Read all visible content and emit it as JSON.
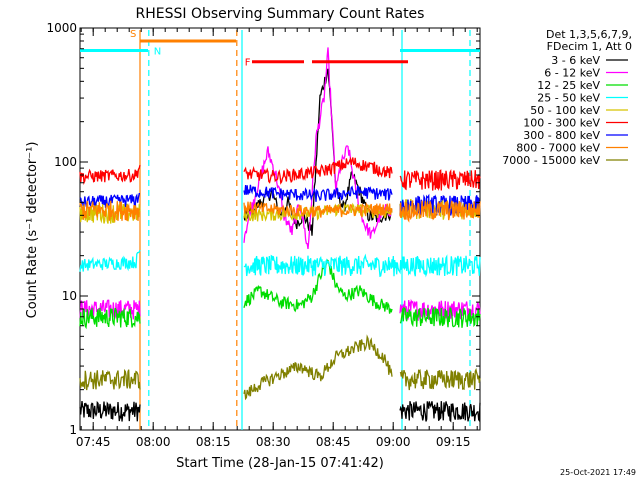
{
  "chart_data": {
    "type": "line",
    "title": "RHESSI Observing Summary Count Rates",
    "xlabel": "Start Time (28-Jan-15 07:41:42)",
    "ylabel": "Count Rate (s⁻¹ detector⁻¹)",
    "y_scale": "log",
    "ylim": [
      1,
      1000
    ],
    "xlim_minutes": [
      0,
      100
    ],
    "y_ticks": [
      {
        "value": 1,
        "label": "1"
      },
      {
        "value": 10,
        "label": "10"
      },
      {
        "value": 100,
        "label": "100"
      },
      {
        "value": 1000,
        "label": "1000"
      }
    ],
    "x_ticks": [
      {
        "minutes": 3.3,
        "label": "07:45"
      },
      {
        "minutes": 18.3,
        "label": "08:00"
      },
      {
        "minutes": 33.3,
        "label": "08:15"
      },
      {
        "minutes": 48.3,
        "label": "08:30"
      },
      {
        "minutes": 63.3,
        "label": "08:45"
      },
      {
        "minutes": 78.3,
        "label": "09:00"
      },
      {
        "minutes": 93.3,
        "label": "09:15"
      }
    ],
    "legend_header": [
      "Det 1,3,5,6,7,9,",
      "FDecim 1, Att 0"
    ],
    "legend_placement": "top-right",
    "timestamp": "25-Oct-2021 17:49",
    "series": [
      {
        "name": "3 - 6 keV",
        "color": "#000000",
        "segments": [
          {
            "x": [
              0,
              15
            ],
            "base": 1.4
          },
          {
            "x": [
              41,
              48,
              50,
              52,
              54,
              56,
              58,
              60,
              62,
              63,
              64,
              66,
              68,
              70,
              72,
              74,
              76,
              78
            ],
            "y": [
              38,
              60,
              40,
              50,
              35,
              40,
              30,
              300,
              500,
              200,
              60,
              45,
              80,
              60,
              40,
              38,
              40,
              42
            ]
          },
          {
            "x": [
              80,
              100
            ],
            "base": 1.4
          }
        ]
      },
      {
        "name": "6 - 12 keV",
        "color": "#ff00ff",
        "segments": [
          {
            "x": [
              0,
              15
            ],
            "base": 8
          },
          {
            "x": [
              41,
              44,
              47,
              49,
              51,
              53,
              55,
              57,
              59,
              61,
              62,
              63,
              64,
              65,
              67,
              69,
              71,
              73,
              75,
              77,
              78
            ],
            "y": [
              28,
              60,
              120,
              80,
              40,
              30,
              50,
              22,
              150,
              300,
              650,
              200,
              60,
              90,
              130,
              60,
              35,
              28,
              40,
              45,
              42
            ]
          },
          {
            "x": [
              80,
              100
            ],
            "base": 8
          }
        ]
      },
      {
        "name": "12 - 25 keV",
        "color": "#00dd00",
        "segments": [
          {
            "x": [
              0,
              15
            ],
            "base": 7
          },
          {
            "x": [
              41,
              45,
              50,
              55,
              58,
              60,
              62,
              64,
              66,
              70,
              74,
              78
            ],
            "y": [
              9,
              11,
              9,
              8.5,
              10,
              14,
              18,
              12,
              10,
              11,
              9,
              8
            ]
          },
          {
            "x": [
              80,
              100
            ],
            "base": 7
          }
        ]
      },
      {
        "name": "25 - 50 keV",
        "color": "#00ffff",
        "segments": [
          {
            "x": [
              0,
              14,
              15
            ],
            "y": [
              17,
              18,
              22
            ]
          },
          {
            "x": [
              41,
              100
            ],
            "base": 17
          }
        ]
      },
      {
        "name": "50 - 100 keV",
        "color": "#d6c400",
        "segments": [
          {
            "x": [
              0,
              15
            ],
            "base": 42
          },
          {
            "x": [
              41,
              60,
              65,
              78
            ],
            "y": [
              40,
              42,
              45,
              42
            ]
          },
          {
            "x": [
              80,
              100
            ],
            "base": 45
          }
        ]
      },
      {
        "name": "100 - 300 keV",
        "color": "#ff0000",
        "segments": [
          {
            "x": [
              0,
              14,
              15
            ],
            "y": [
              78,
              80,
              95
            ]
          },
          {
            "x": [
              41,
              50,
              60,
              68,
              74,
              78
            ],
            "y": [
              82,
              78,
              85,
              100,
              90,
              82
            ]
          },
          {
            "x": [
              80,
              100
            ],
            "base": 74
          }
        ]
      },
      {
        "name": "300 - 800 keV",
        "color": "#0000ff",
        "segments": [
          {
            "x": [
              0,
              14,
              15
            ],
            "y": [
              50,
              52,
              58
            ]
          },
          {
            "x": [
              41,
              50,
              60,
              70,
              78
            ],
            "y": [
              62,
              58,
              56,
              60,
              57
            ]
          },
          {
            "x": [
              80,
              100
            ],
            "base": 48
          }
        ]
      },
      {
        "name": "800 - 7000 keV",
        "color": "#ff8000",
        "segments": [
          {
            "x": [
              0,
              15
            ],
            "base": 44
          },
          {
            "x": [
              41,
              50,
              60,
              70,
              78
            ],
            "y": [
              46,
              44,
              43,
              44,
              45
            ]
          },
          {
            "x": [
              80,
              100
            ],
            "base": 44
          }
        ]
      },
      {
        "name": "7000 - 15000 keV",
        "color": "#808000",
        "segments": [
          {
            "x": [
              0,
              15
            ],
            "base": 2.4
          },
          {
            "x": [
              41,
              45,
              50,
              55,
              60,
              64,
              68,
              72,
              76,
              78
            ],
            "y": [
              1.8,
              2.2,
              2.6,
              3,
              2.5,
              3.5,
              4,
              4.5,
              3.5,
              2.5
            ]
          },
          {
            "x": [
              80,
              100
            ],
            "base": 2.4
          }
        ]
      }
    ],
    "flags": [
      {
        "label": "S",
        "color": "#ff8000",
        "y_value": 800,
        "x": [
          15,
          39
        ]
      },
      {
        "label": "N",
        "color": "#00ffff",
        "y_value": 680,
        "x": [
          0,
          17
        ],
        "x2": [
          80,
          100
        ]
      },
      {
        "label": "F",
        "color": "#ff0000",
        "y_value": 560,
        "x": [
          43,
          56
        ],
        "x3": [
          58,
          82
        ]
      }
    ],
    "vertical_lines": [
      {
        "minutes": 15,
        "color": "#ff8000",
        "style": "solid"
      },
      {
        "minutes": 17.2,
        "color": "#00ffff",
        "style": "dashed"
      },
      {
        "minutes": 39.2,
        "color": "#ff8000",
        "style": "dashed"
      },
      {
        "minutes": 40.5,
        "color": "#00ffff",
        "style": "solid"
      },
      {
        "minutes": 80.5,
        "color": "#00ffff",
        "style": "solid"
      },
      {
        "minutes": 97.5,
        "color": "#00ffff",
        "style": "dashed"
      }
    ]
  }
}
